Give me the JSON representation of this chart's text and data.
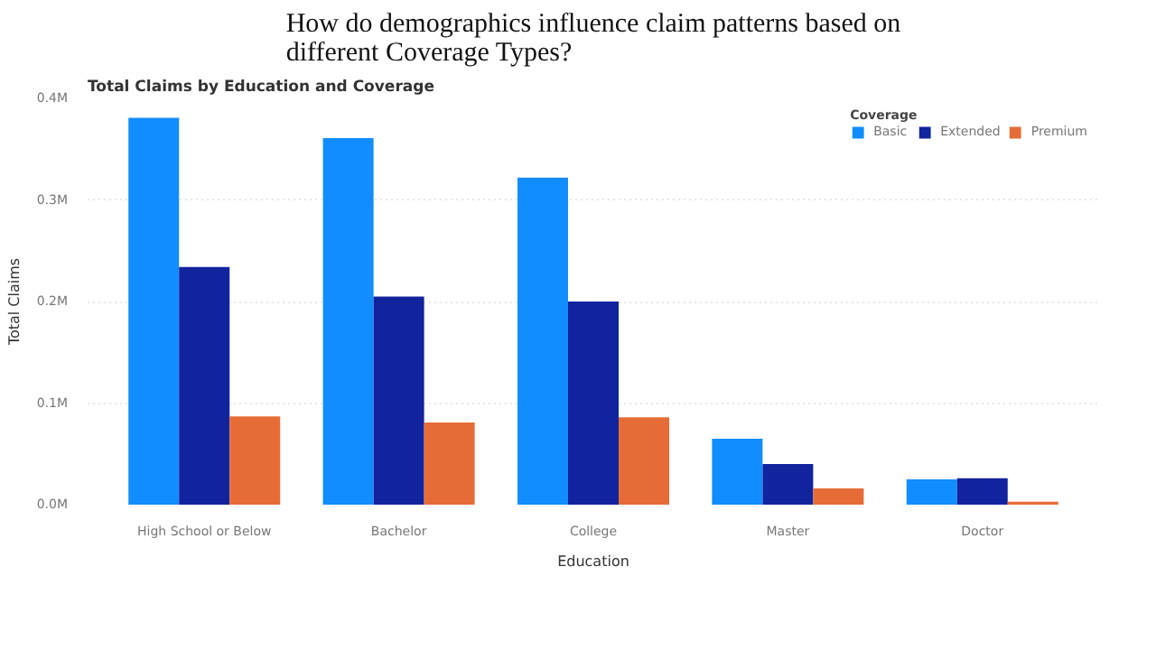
{
  "chart_data": {
    "type": "bar",
    "title": "How do demographics influence claim patterns based on different Coverage Types?",
    "subtitle": "Total Claims by Education and Coverage",
    "xlabel": "Education",
    "ylabel": "Total Claims",
    "legend_title": "Coverage",
    "categories": [
      "High School or Below",
      "Bachelor",
      "College",
      "Master",
      "Doctor"
    ],
    "series": [
      {
        "name": "Basic",
        "color": "#118dff",
        "values": [
          381000,
          361000,
          322000,
          65000,
          25000
        ]
      },
      {
        "name": "Extended",
        "color": "#12239e",
        "values": [
          234000,
          205000,
          200000,
          40000,
          26000
        ]
      },
      {
        "name": "Premium",
        "color": "#e66c37",
        "values": [
          87000,
          81000,
          86000,
          16000,
          3000
        ]
      }
    ],
    "ylim": [
      0,
      400000
    ],
    "yticks": [
      {
        "value": 0,
        "label": "0.0M"
      },
      {
        "value": 100000,
        "label": "0.1M"
      },
      {
        "value": 200000,
        "label": "0.2M"
      },
      {
        "value": 300000,
        "label": "0.3M"
      },
      {
        "value": 400000,
        "label": "0.4M"
      }
    ],
    "grid": "y",
    "legend": "top right"
  }
}
